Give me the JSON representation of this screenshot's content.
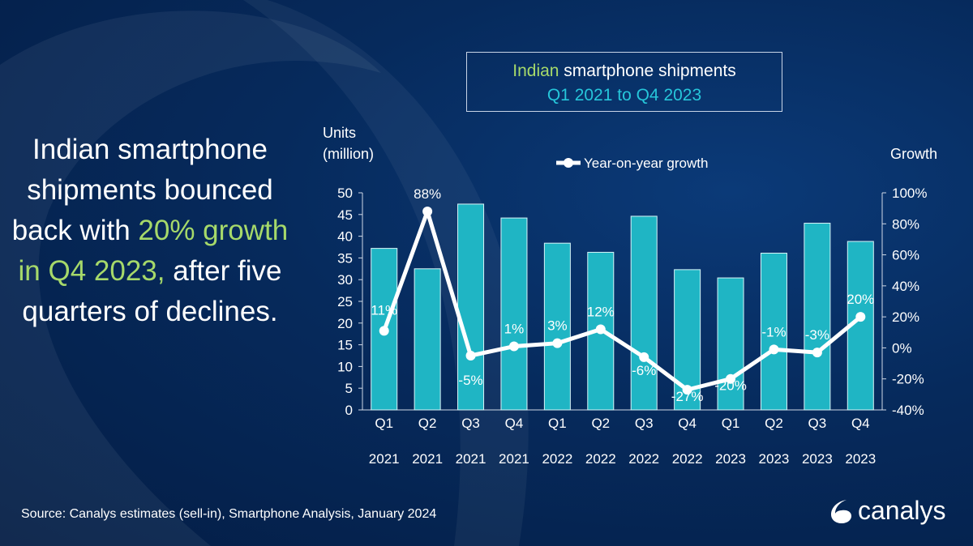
{
  "headline": {
    "part1": "Indian smartphone shipments bounced back with ",
    "highlight": "20% growth in Q4 2023,",
    "part2": " after five quarters of declines."
  },
  "title": {
    "line1_highlight": "Indian",
    "line1_rest": " smartphone shipments",
    "line2": "Q1 2021 to Q4 2023"
  },
  "source": "Source:  Canalys estimates (sell-in), Smartphone Analysis, January 2024",
  "logo": {
    "text": "canalys"
  },
  "colors": {
    "bar": "#1fb5c4",
    "line": "#ffffff",
    "highlight": "#a6d96a",
    "accent": "#26c6da"
  },
  "chart_data": {
    "type": "bar+line",
    "categories": [
      "Q1 2021",
      "Q2 2021",
      "Q3 2021",
      "Q4 2021",
      "Q1 2022",
      "Q2 2022",
      "Q3 2022",
      "Q4 2022",
      "Q1 2023",
      "Q2 2023",
      "Q3 2023",
      "Q4 2023"
    ],
    "category_lines": [
      [
        "Q1",
        "2021"
      ],
      [
        "Q2",
        "2021"
      ],
      [
        "Q3",
        "2021"
      ],
      [
        "Q4",
        "2021"
      ],
      [
        "Q1",
        "2022"
      ],
      [
        "Q2",
        "2022"
      ],
      [
        "Q3",
        "2022"
      ],
      [
        "Q4",
        "2022"
      ],
      [
        "Q1",
        "2023"
      ],
      [
        "Q2",
        "2023"
      ],
      [
        "Q3",
        "2023"
      ],
      [
        "Q4",
        "2023"
      ]
    ],
    "bars": {
      "values": [
        37.2,
        32.5,
        47.4,
        44.2,
        38.4,
        36.3,
        44.6,
        32.3,
        30.4,
        36.1,
        43.0,
        38.8
      ],
      "axis": "left"
    },
    "line": {
      "name": "Year-on-year growth",
      "values": [
        11,
        88,
        -5,
        1,
        3,
        12,
        -6,
        -27,
        -20,
        -1,
        -3,
        20
      ],
      "labels": [
        "11%",
        "88%",
        "-5%",
        "1%",
        "3%",
        "12%",
        "-6%",
        "-27%",
        "-20%",
        "-1%",
        "-3%",
        "20%"
      ],
      "axis": "right"
    },
    "ylabel_left": [
      "Units",
      "(million)"
    ],
    "ylabel_right": "Growth",
    "ylim_left": [
      0,
      50
    ],
    "yticks_left": [
      "0",
      "5",
      "10",
      "15",
      "20",
      "25",
      "30",
      "35",
      "40",
      "45",
      "50"
    ],
    "ylim_right": [
      -40,
      100
    ],
    "yticks_right": [
      "-40%",
      "-20%",
      "0%",
      "20%",
      "40%",
      "60%",
      "80%",
      "100%"
    ],
    "legend_placement": "top",
    "grid": false
  }
}
